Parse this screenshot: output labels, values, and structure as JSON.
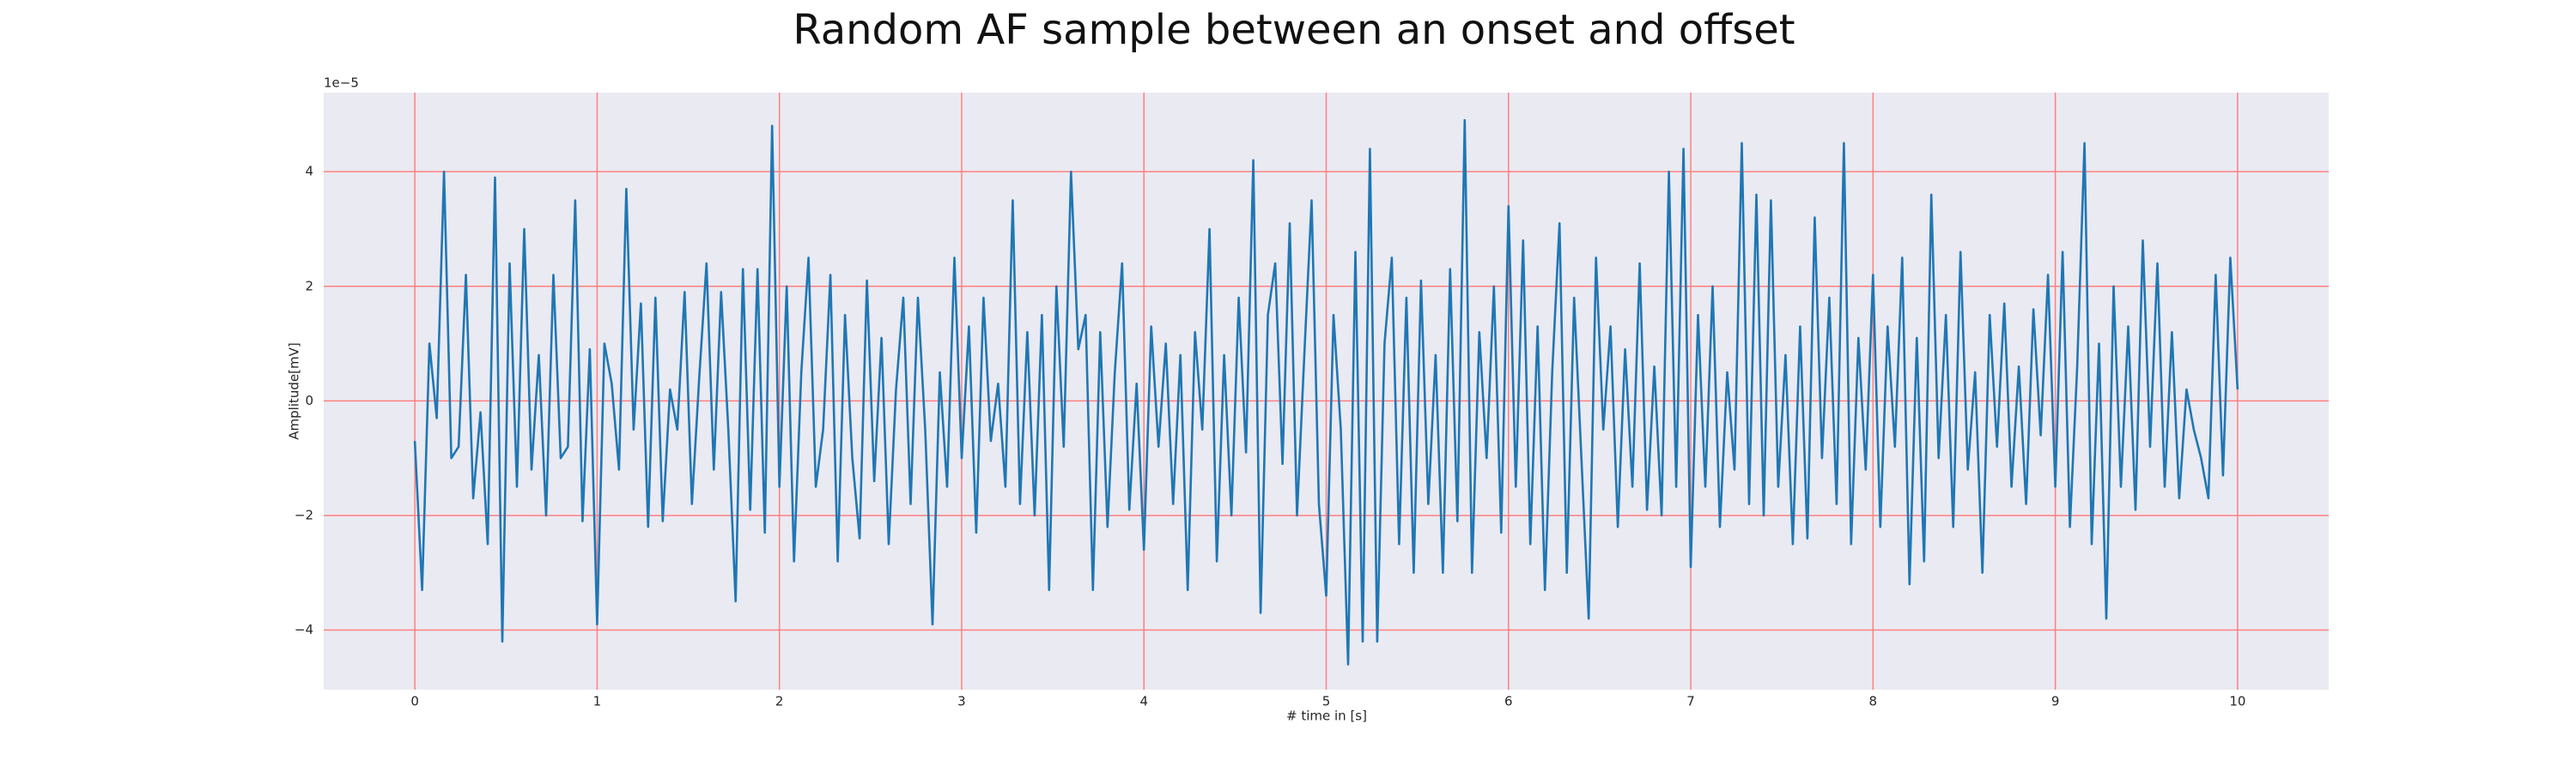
{
  "chart_data": {
    "type": "line",
    "title": "Random AF sample between an onset and offset",
    "x_label": "# time in [s]",
    "y_label": "Amplitude[mV]",
    "y_offset_label": "1e−5",
    "color": "#1f77b4",
    "grid": true,
    "grid_color": "#ff8080",
    "background": "#eaeaf2",
    "xlim": [
      -0.5,
      10.5
    ],
    "ylim": [
      -5.04,
      5.38
    ],
    "xticks": [
      0,
      1,
      2,
      3,
      4,
      5,
      6,
      7,
      8,
      9,
      10
    ],
    "yticks": [
      {
        "value": -4,
        "label": "−4"
      },
      {
        "value": -2,
        "label": "−2"
      },
      0,
      2,
      4
    ],
    "x": [
      0,
      0.04,
      0.08,
      0.12,
      0.16,
      0.2,
      0.24,
      0.28,
      0.32,
      0.36,
      0.4,
      0.44,
      0.48,
      0.52,
      0.56,
      0.6,
      0.64,
      0.68,
      0.72,
      0.76,
      0.8,
      0.84,
      0.88,
      0.92,
      0.96,
      1,
      1.04,
      1.08,
      1.12,
      1.16,
      1.2,
      1.24,
      1.28,
      1.32,
      1.36,
      1.4,
      1.44,
      1.48,
      1.52,
      1.56,
      1.6,
      1.64,
      1.68,
      1.72,
      1.76,
      1.8,
      1.84,
      1.88,
      1.92,
      1.96,
      2,
      2.04,
      2.08,
      2.12,
      2.16,
      2.2,
      2.24,
      2.28,
      2.32,
      2.36,
      2.4,
      2.44,
      2.48,
      2.52,
      2.56,
      2.6,
      2.64,
      2.68,
      2.72,
      2.76,
      2.8,
      2.84,
      2.88,
      2.92,
      2.96,
      3,
      3.04,
      3.08,
      3.12,
      3.16,
      3.2,
      3.24,
      3.28,
      3.32,
      3.36,
      3.4,
      3.44,
      3.48,
      3.52,
      3.56,
      3.6,
      3.64,
      3.68,
      3.72,
      3.76,
      3.8,
      3.84,
      3.88,
      3.92,
      3.96,
      4,
      4.04,
      4.08,
      4.12,
      4.16,
      4.2,
      4.24,
      4.28,
      4.32,
      4.36,
      4.4,
      4.44,
      4.48,
      4.52,
      4.56,
      4.6,
      4.64,
      4.68,
      4.72,
      4.76,
      4.8,
      4.84,
      4.88,
      4.92,
      4.96,
      5,
      5.04,
      5.08,
      5.12,
      5.16,
      5.2,
      5.24,
      5.28,
      5.32,
      5.36,
      5.4,
      5.44,
      5.48,
      5.52,
      5.56,
      5.6,
      5.64,
      5.68,
      5.72,
      5.76,
      5.8,
      5.84,
      5.88,
      5.92,
      5.96,
      6,
      6.04,
      6.08,
      6.12,
      6.16,
      6.2,
      6.24,
      6.28,
      6.32,
      6.36,
      6.4,
      6.44,
      6.48,
      6.52,
      6.56,
      6.6,
      6.64,
      6.68,
      6.72,
      6.76,
      6.8,
      6.84,
      6.88,
      6.92,
      6.96,
      7,
      7.04,
      7.08,
      7.12,
      7.16,
      7.2,
      7.24,
      7.28,
      7.32,
      7.36,
      7.4,
      7.44,
      7.48,
      7.52,
      7.56,
      7.6,
      7.64,
      7.68,
      7.72,
      7.76,
      7.8,
      7.84,
      7.88,
      7.92,
      7.96,
      8,
      8.04,
      8.08,
      8.12,
      8.16,
      8.2,
      8.24,
      8.28,
      8.32,
      8.36,
      8.4,
      8.44,
      8.48,
      8.52,
      8.56,
      8.6,
      8.64,
      8.68,
      8.72,
      8.76,
      8.8,
      8.84,
      8.88,
      8.92,
      8.96,
      9,
      9.04,
      9.08,
      9.12,
      9.16,
      9.2,
      9.24,
      9.28,
      9.32,
      9.36,
      9.4,
      9.44,
      9.48,
      9.52,
      9.56,
      9.6,
      9.64,
      9.68,
      9.72,
      9.76,
      9.8,
      9.84,
      9.88,
      9.92,
      9.96,
      10
    ],
    "values": [
      -0.7,
      -3.3,
      1.0,
      -0.3,
      4.0,
      -1.0,
      -0.8,
      2.2,
      -1.7,
      -0.2,
      -2.5,
      3.9,
      -4.2,
      2.4,
      -1.5,
      3.0,
      -1.2,
      0.8,
      -2.0,
      2.2,
      -1.0,
      -0.8,
      3.5,
      -2.1,
      0.9,
      -3.9,
      1.0,
      0.3,
      -1.2,
      3.7,
      -0.5,
      1.7,
      -2.2,
      1.8,
      -2.1,
      0.2,
      -0.5,
      1.9,
      -1.8,
      0.4,
      2.4,
      -1.2,
      1.9,
      -0.5,
      -3.5,
      2.3,
      -1.9,
      2.3,
      -2.3,
      4.8,
      -1.5,
      2.0,
      -2.8,
      0.5,
      2.5,
      -1.5,
      -0.5,
      2.2,
      -2.8,
      1.5,
      -1.0,
      -2.4,
      2.1,
      -1.4,
      1.1,
      -2.5,
      0.2,
      1.8,
      -1.8,
      1.8,
      -0.5,
      -3.9,
      0.5,
      -1.5,
      2.5,
      -1.0,
      1.3,
      -2.3,
      1.8,
      -0.7,
      0.3,
      -1.5,
      3.5,
      -1.8,
      1.2,
      -2.0,
      1.5,
      -3.3,
      2.0,
      -0.8,
      4.0,
      0.9,
      1.5,
      -3.3,
      1.2,
      -2.2,
      0.5,
      2.4,
      -1.9,
      0.3,
      -2.6,
      1.3,
      -0.8,
      1.0,
      -1.8,
      0.8,
      -3.3,
      1.2,
      -0.5,
      3.0,
      -2.8,
      0.8,
      -2.0,
      1.8,
      -0.9,
      4.2,
      -3.7,
      1.5,
      2.4,
      -1.1,
      3.1,
      -2.0,
      0.8,
      3.5,
      -1.8,
      -3.4,
      1.5,
      -0.5,
      -4.6,
      2.6,
      -4.2,
      4.4,
      -4.2,
      1.0,
      2.5,
      -2.5,
      1.8,
      -3.0,
      2.1,
      -1.8,
      0.8,
      -3.0,
      2.3,
      -2.1,
      4.9,
      -3.0,
      1.2,
      -1.0,
      2.0,
      -2.3,
      3.4,
      -1.5,
      2.8,
      -2.5,
      1.3,
      -3.3,
      0.5,
      3.1,
      -3.0,
      1.8,
      -1.0,
      -3.8,
      2.5,
      -0.5,
      1.3,
      -2.2,
      0.9,
      -1.5,
      2.4,
      -1.9,
      0.6,
      -2.0,
      4.0,
      -1.5,
      4.4,
      -2.9,
      1.5,
      -1.5,
      2.0,
      -2.2,
      0.5,
      -1.2,
      4.5,
      -1.8,
      3.6,
      -2.0,
      3.5,
      -1.5,
      0.8,
      -2.5,
      1.3,
      -2.4,
      3.2,
      -1.0,
      1.8,
      -1.8,
      4.5,
      -2.5,
      1.1,
      -1.2,
      2.2,
      -2.2,
      1.3,
      -0.8,
      2.5,
      -3.2,
      1.1,
      -2.8,
      3.6,
      -1.0,
      1.5,
      -2.2,
      2.6,
      -1.2,
      0.5,
      -3.0,
      1.5,
      -0.8,
      1.7,
      -1.5,
      0.6,
      -1.8,
      1.6,
      -0.6,
      2.2,
      -1.5,
      2.6,
      -2.2,
      0.6,
      4.5,
      -2.5,
      1.0,
      -3.8,
      2.0,
      -1.5,
      1.3,
      -1.9,
      2.8,
      -0.8,
      2.4,
      -1.5,
      1.2,
      -1.7,
      0.2,
      -0.5,
      -1.0,
      -1.7,
      2.2,
      -1.3,
      2.5,
      0.2
    ]
  }
}
